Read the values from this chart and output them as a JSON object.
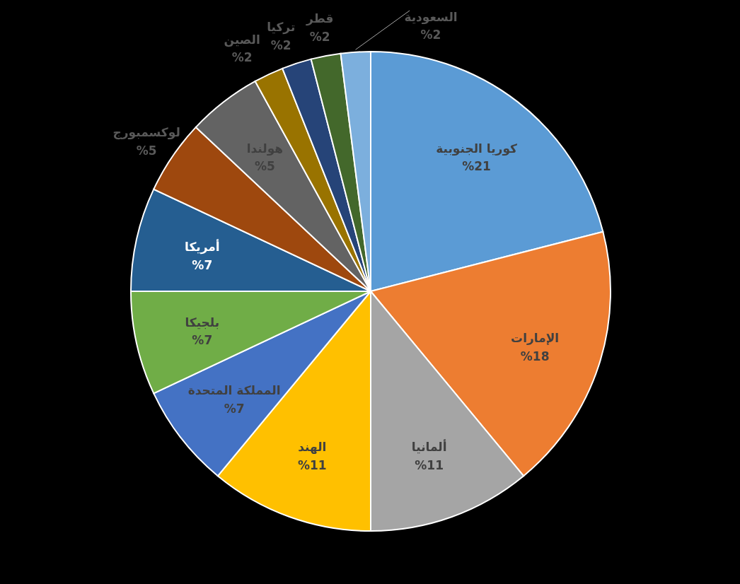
{
  "chart_data": {
    "type": "pie",
    "categories": [
      "كوريا الجنوبية",
      "الإمارات",
      "ألمانيا",
      "الهند",
      "المملكة المتحدة",
      "بلجيكا",
      "أمريكا",
      "لوكسمبورج",
      "هولندا",
      "الصين",
      "تركيا",
      "قطر",
      "السعودية"
    ],
    "values": [
      21,
      18,
      11,
      11,
      7,
      7,
      7,
      5,
      5,
      2,
      2,
      2,
      2
    ],
    "colors": [
      "#5b9bd5",
      "#ed7d31",
      "#a5a5a5",
      "#ffc000",
      "#4472c4",
      "#70ad47",
      "#255e91",
      "#9e480e",
      "#636363",
      "#997300",
      "#264478",
      "#43682b",
      "#7cafdd"
    ],
    "value_labels": [
      "%21",
      "%18",
      "%11",
      "%11",
      "%7",
      "%7",
      "%7",
      "%5",
      "%5",
      "%2",
      "%2",
      "%2",
      "%2"
    ]
  }
}
